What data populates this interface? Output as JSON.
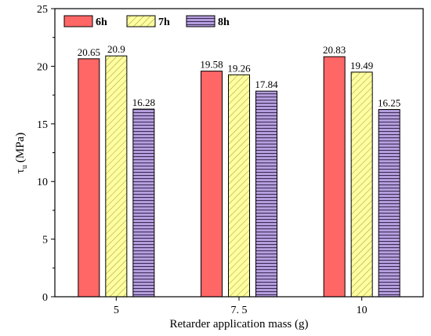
{
  "chart_data": {
    "type": "bar",
    "categories": [
      "5",
      "7. 5",
      "10"
    ],
    "series": [
      {
        "name": "6h",
        "values": [
          20.65,
          19.58,
          20.83
        ],
        "labels": [
          "20.65",
          "19.58",
          "20.83"
        ],
        "color": "#ff6666",
        "pattern": "solid"
      },
      {
        "name": "7h",
        "values": [
          20.9,
          19.26,
          19.49
        ],
        "labels": [
          "20.9",
          "19.26",
          "19.49"
        ],
        "color": "#ffffa0",
        "pattern": "diagonal-hatch"
      },
      {
        "name": "8h",
        "values": [
          16.28,
          17.84,
          16.25
        ],
        "labels": [
          "16.28",
          "17.84",
          "16.25"
        ],
        "color": "#b39ddb",
        "pattern": "horizontal-lines"
      }
    ],
    "xlabel": "Retarder application mass (g)",
    "ylabel": "τ",
    "ylabel_subscript": "u",
    "ylabel_unit": "(MPa)",
    "ylim": [
      0,
      25
    ],
    "yticks": [
      "0",
      "5",
      "10",
      "15",
      "20",
      "25"
    ],
    "grid": false,
    "legend_position": "top-left"
  }
}
